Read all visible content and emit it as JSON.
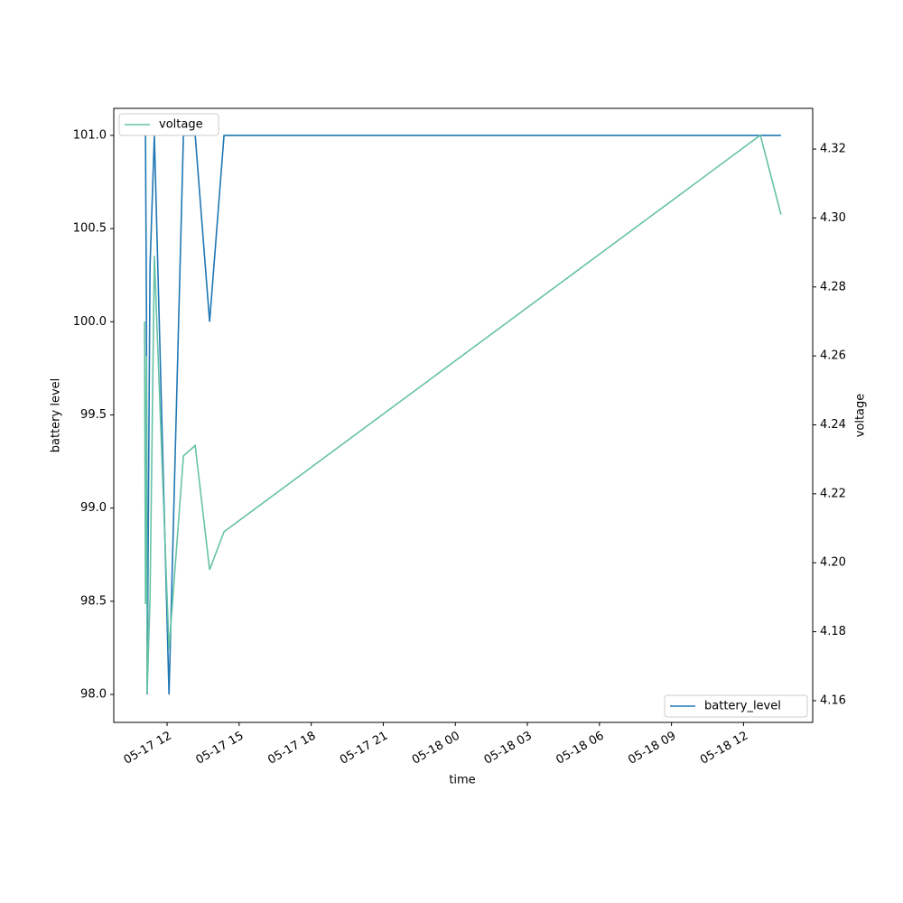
{
  "chart_data": {
    "type": "line",
    "xlabel": "time",
    "ylabel": "battery level",
    "y2label": "voltage",
    "x": [
      11.06,
      11.1,
      11.14,
      11.17,
      11.29,
      11.47,
      12.08,
      12.68,
      13.17,
      13.77,
      14.37,
      36.7,
      37.56
    ],
    "series": [
      {
        "name": "battery_level",
        "color": "#1f77b4",
        "values": [
          101,
          101,
          100.08,
          98,
          100.3,
          101,
          98,
          101,
          101,
          100,
          101,
          101,
          101
        ],
        "legend": "lower right"
      },
      {
        "name": "voltage",
        "color": "#66c2a5",
        "axis": "y2",
        "values": [
          4.27,
          4.188,
          4.26,
          4.162,
          4.19,
          4.289,
          4.175,
          4.231,
          4.234,
          4.198,
          4.209,
          4.324,
          4.301
        ],
        "legend": "upper left"
      }
    ],
    "xlim": [
      9.78,
      38.88
    ],
    "xticks": [
      {
        "value": 12,
        "label": "05-17 12"
      },
      {
        "value": 15,
        "label": "05-17 15"
      },
      {
        "value": 18,
        "label": "05-17 18"
      },
      {
        "value": 21,
        "label": "05-17 21"
      },
      {
        "value": 24,
        "label": "05-18 00"
      },
      {
        "value": 27,
        "label": "05-18 03"
      },
      {
        "value": 30,
        "label": "05-18 06"
      },
      {
        "value": 33,
        "label": "05-18 09"
      },
      {
        "value": 36,
        "label": "05-18 12"
      }
    ],
    "ylim": [
      97.85,
      101.145
    ],
    "yticks": [
      {
        "value": 98,
        "label": "98.0"
      },
      98.5,
      {
        "value": 99,
        "label": "99.0"
      },
      99.5,
      {
        "value": 100,
        "label": "100.0"
      },
      100.5,
      {
        "value": 101,
        "label": "101.0"
      }
    ],
    "y2lim": [
      4.1537,
      4.3318
    ],
    "y2ticks": [
      4.16,
      4.18,
      {
        "value": 4.2,
        "label": "4.20"
      },
      4.22,
      4.24,
      4.26,
      4.28,
      {
        "value": 4.3,
        "label": "4.30"
      },
      4.32
    ]
  }
}
